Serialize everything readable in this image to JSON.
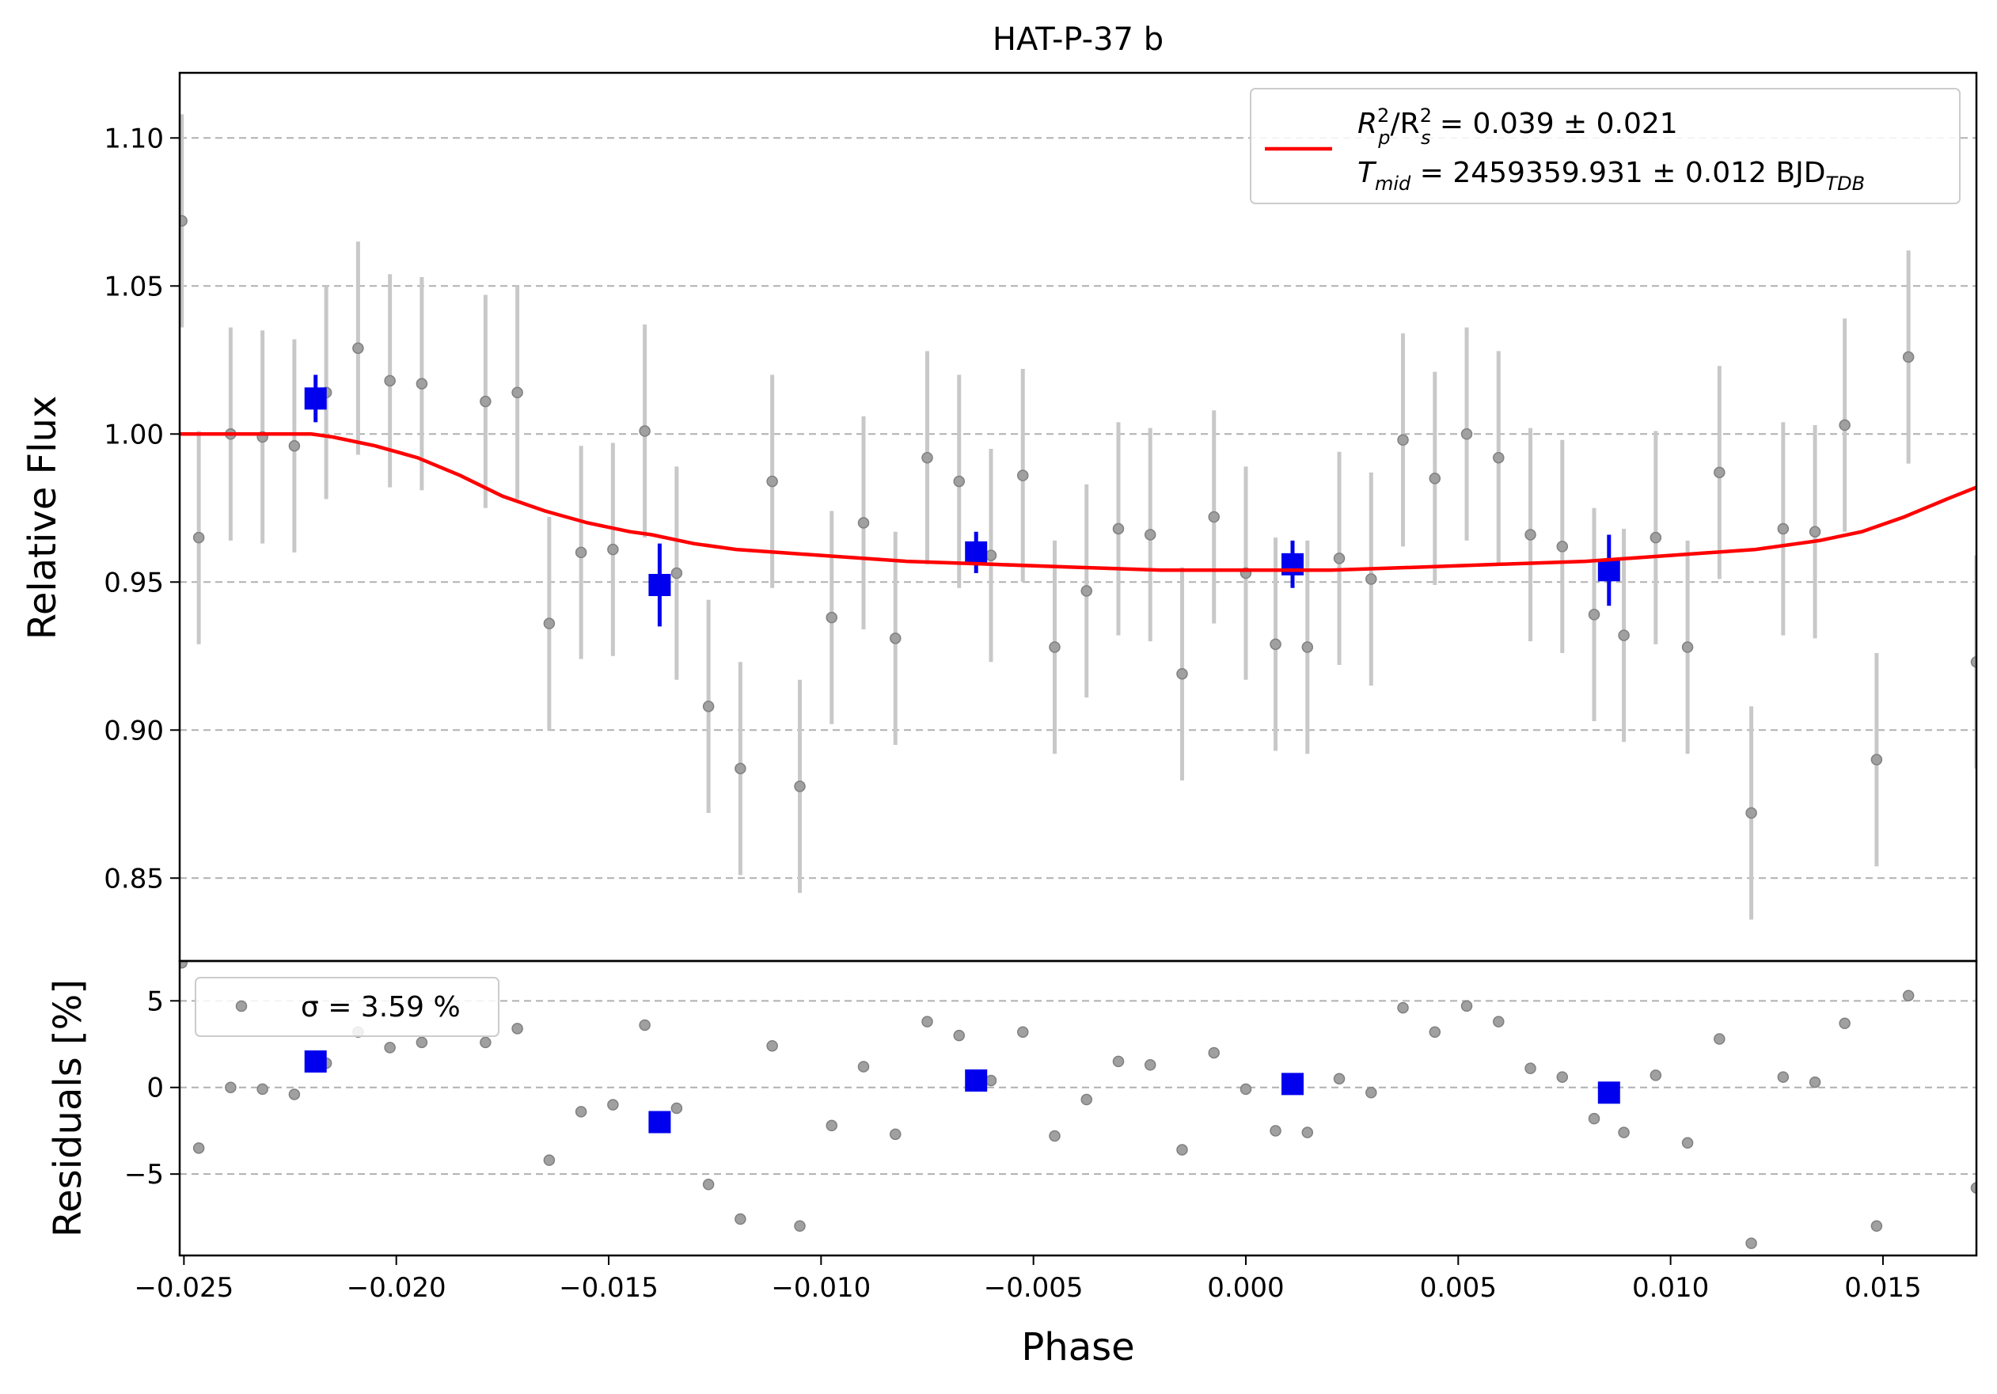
{
  "chart_data": [
    {
      "type": "scatter",
      "panel": "light-curve",
      "title": "HAT-P-37 b",
      "xlabel": "",
      "ylabel": "Relative Flux",
      "xlim": [
        -0.0251,
        0.0172
      ],
      "ylim": [
        0.822,
        1.122
      ],
      "grid": "y-dashed",
      "legend": "top-right",
      "legend_lines": {
        "line1": {
          "lhs": "R",
          "sub1": "p",
          "sup1": "2",
          "mid": "/R",
          "sub2": "s",
          "sup2": "2",
          "rhs": " = 0.039 ± 0.021"
        },
        "line2": {
          "lhs": "T",
          "sub1": "mid",
          "rhs": " = 2459359.931 ± 0.012 BJD",
          "sub2": "TDB"
        }
      },
      "y_ticks": [
        "0.85",
        "0.90",
        "0.95",
        "1.00",
        "1.05",
        "1.10"
      ],
      "y_tick_values": [
        0.85,
        0.9,
        0.95,
        1.0,
        1.05,
        1.1
      ],
      "colors": {
        "data": "#a0a0a0",
        "errorbar": "#c8c8c8",
        "binned": "#0000ee",
        "model": "#ff0000"
      },
      "series": [
        {
          "name": "",
          "kind": "data",
          "error": 0.036,
          "points": [
            [
              -0.02505,
              1.072
            ],
            [
              -0.02465,
              0.965
            ],
            [
              -0.0239,
              1.0
            ],
            [
              -0.02315,
              0.999
            ],
            [
              -0.0224,
              0.996
            ],
            [
              -0.02165,
              1.014
            ],
            [
              -0.0209,
              1.029
            ],
            [
              -0.02015,
              1.018
            ],
            [
              -0.0194,
              1.017
            ],
            [
              -0.0179,
              1.011
            ],
            [
              -0.01715,
              1.014
            ],
            [
              -0.0164,
              0.936
            ],
            [
              -0.01565,
              0.96
            ],
            [
              -0.0149,
              0.961
            ],
            [
              -0.01415,
              1.001
            ],
            [
              -0.0134,
              0.953
            ],
            [
              -0.01265,
              0.908
            ],
            [
              -0.0119,
              0.887
            ],
            [
              -0.01115,
              0.984
            ],
            [
              -0.0105,
              0.881
            ],
            [
              -0.00975,
              0.938
            ],
            [
              -0.009,
              0.97
            ],
            [
              -0.00825,
              0.931
            ],
            [
              -0.0075,
              0.992
            ],
            [
              -0.00675,
              0.984
            ],
            [
              -0.006,
              0.959
            ],
            [
              -0.00525,
              0.986
            ],
            [
              -0.0045,
              0.928
            ],
            [
              -0.00375,
              0.947
            ],
            [
              -0.003,
              0.968
            ],
            [
              -0.00225,
              0.966
            ],
            [
              -0.0015,
              0.919
            ],
            [
              -0.00075,
              0.972
            ],
            [
              0.0,
              0.953
            ],
            [
              0.0007,
              0.929
            ],
            [
              0.00145,
              0.928
            ],
            [
              0.0022,
              0.958
            ],
            [
              0.00295,
              0.951
            ],
            [
              0.0037,
              0.998
            ],
            [
              0.00445,
              0.985
            ],
            [
              0.0052,
              1.0
            ],
            [
              0.00595,
              0.992
            ],
            [
              0.0067,
              0.966
            ],
            [
              0.00745,
              0.962
            ],
            [
              0.0082,
              0.939
            ],
            [
              0.0089,
              0.932
            ],
            [
              0.00965,
              0.965
            ],
            [
              0.0104,
              0.928
            ],
            [
              0.01115,
              0.987
            ],
            [
              0.0119,
              0.872
            ],
            [
              0.01265,
              0.968
            ],
            [
              0.0134,
              0.967
            ],
            [
              0.0141,
              1.003
            ],
            [
              0.01485,
              0.89
            ],
            [
              0.0156,
              1.026
            ],
            [
              0.0172,
              0.923
            ]
          ]
        },
        {
          "name": "",
          "kind": "binned",
          "points": [
            [
              -0.0219,
              1.012,
              0.008
            ],
            [
              -0.0138,
              0.949,
              0.014
            ],
            [
              -0.00635,
              0.96,
              0.007
            ],
            [
              0.0011,
              0.956,
              0.008
            ],
            [
              0.00855,
              0.954,
              0.012
            ]
          ]
        },
        {
          "name": "R",
          "kind": "model",
          "points": [
            [
              -0.0251,
              1.0
            ],
            [
              -0.023,
              1.0
            ],
            [
              -0.022,
              1.0
            ],
            [
              -0.0215,
              0.999
            ],
            [
              -0.0205,
              0.996
            ],
            [
              -0.0195,
              0.992
            ],
            [
              -0.0185,
              0.986
            ],
            [
              -0.0175,
              0.979
            ],
            [
              -0.0165,
              0.974
            ],
            [
              -0.0155,
              0.97
            ],
            [
              -0.0145,
              0.967
            ],
            [
              -0.014,
              0.966
            ],
            [
              -0.013,
              0.963
            ],
            [
              -0.012,
              0.961
            ],
            [
              -0.011,
              0.96
            ],
            [
              -0.01,
              0.959
            ],
            [
              -0.008,
              0.957
            ],
            [
              -0.006,
              0.956
            ],
            [
              -0.004,
              0.955
            ],
            [
              -0.002,
              0.954
            ],
            [
              0.0,
              0.954
            ],
            [
              0.002,
              0.954
            ],
            [
              0.004,
              0.955
            ],
            [
              0.006,
              0.956
            ],
            [
              0.008,
              0.957
            ],
            [
              0.01,
              0.959
            ],
            [
              0.012,
              0.961
            ],
            [
              0.0135,
              0.964
            ],
            [
              0.0145,
              0.967
            ],
            [
              0.0155,
              0.972
            ],
            [
              0.0165,
              0.978
            ],
            [
              0.0172,
              0.982
            ]
          ]
        }
      ]
    },
    {
      "type": "scatter",
      "panel": "residuals",
      "xlabel": "Phase",
      "ylabel": "Residuals [%]",
      "xlim": [
        -0.0251,
        0.0172
      ],
      "ylim": [
        -9.7,
        7.3
      ],
      "grid": "y-dashed",
      "legend": "top-left",
      "legend_text": "σ = 3.59 %",
      "x_ticks": [
        "−0.025",
        "−0.020",
        "−0.015",
        "−0.010",
        "−0.005",
        "0.000",
        "0.005",
        "0.010",
        "0.015"
      ],
      "x_tick_values": [
        -0.025,
        -0.02,
        -0.015,
        -0.01,
        -0.005,
        0.0,
        0.005,
        0.01,
        0.015
      ],
      "y_ticks": [
        "−5",
        "0",
        "5"
      ],
      "y_tick_values": [
        -5,
        0,
        5
      ],
      "series": [
        {
          "name": "",
          "kind": "data",
          "points": [
            [
              -0.02505,
              7.2
            ],
            [
              -0.02465,
              -3.5
            ],
            [
              -0.0239,
              0.0
            ],
            [
              -0.02315,
              -0.1
            ],
            [
              -0.0224,
              -0.4
            ],
            [
              -0.02165,
              1.4
            ],
            [
              -0.0209,
              3.2
            ],
            [
              -0.02015,
              2.3
            ],
            [
              -0.0194,
              2.6
            ],
            [
              -0.0179,
              2.6
            ],
            [
              -0.01715,
              3.4
            ],
            [
              -0.0164,
              -4.2
            ],
            [
              -0.01565,
              -1.4
            ],
            [
              -0.0149,
              -1.0
            ],
            [
              -0.01415,
              3.6
            ],
            [
              -0.0134,
              -1.2
            ],
            [
              -0.01265,
              -5.6
            ],
            [
              -0.0119,
              -7.6
            ],
            [
              -0.01115,
              2.4
            ],
            [
              -0.0105,
              -8.0
            ],
            [
              -0.00975,
              -2.2
            ],
            [
              -0.009,
              1.2
            ],
            [
              -0.00825,
              -2.7
            ],
            [
              -0.0075,
              3.8
            ],
            [
              -0.00675,
              3.0
            ],
            [
              -0.006,
              0.4
            ],
            [
              -0.00525,
              3.2
            ],
            [
              -0.0045,
              -2.8
            ],
            [
              -0.00375,
              -0.7
            ],
            [
              -0.003,
              1.5
            ],
            [
              -0.00225,
              1.3
            ],
            [
              -0.0015,
              -3.6
            ],
            [
              -0.00075,
              2.0
            ],
            [
              0.0,
              -0.1
            ],
            [
              0.0007,
              -2.5
            ],
            [
              0.00145,
              -2.6
            ],
            [
              0.0022,
              0.5
            ],
            [
              0.00295,
              -0.3
            ],
            [
              0.0037,
              4.6
            ],
            [
              0.00445,
              3.2
            ],
            [
              0.0052,
              4.7
            ],
            [
              0.00595,
              3.8
            ],
            [
              0.0067,
              1.1
            ],
            [
              0.00745,
              0.6
            ],
            [
              0.0082,
              -1.8
            ],
            [
              0.0089,
              -2.6
            ],
            [
              0.00965,
              0.7
            ],
            [
              0.0104,
              -3.2
            ],
            [
              0.01115,
              2.8
            ],
            [
              0.0119,
              -9.0
            ],
            [
              0.01265,
              0.6
            ],
            [
              0.0134,
              0.3
            ],
            [
              0.0141,
              3.7
            ],
            [
              0.01485,
              -8.0
            ],
            [
              0.0156,
              5.3
            ],
            [
              0.0172,
              -5.8
            ]
          ]
        },
        {
          "name": "",
          "kind": "binned",
          "points": [
            [
              -0.0219,
              1.5
            ],
            [
              -0.0138,
              -2.0
            ],
            [
              -0.00635,
              0.4
            ],
            [
              0.0011,
              0.2
            ],
            [
              0.00855,
              -0.3
            ]
          ]
        }
      ]
    }
  ]
}
